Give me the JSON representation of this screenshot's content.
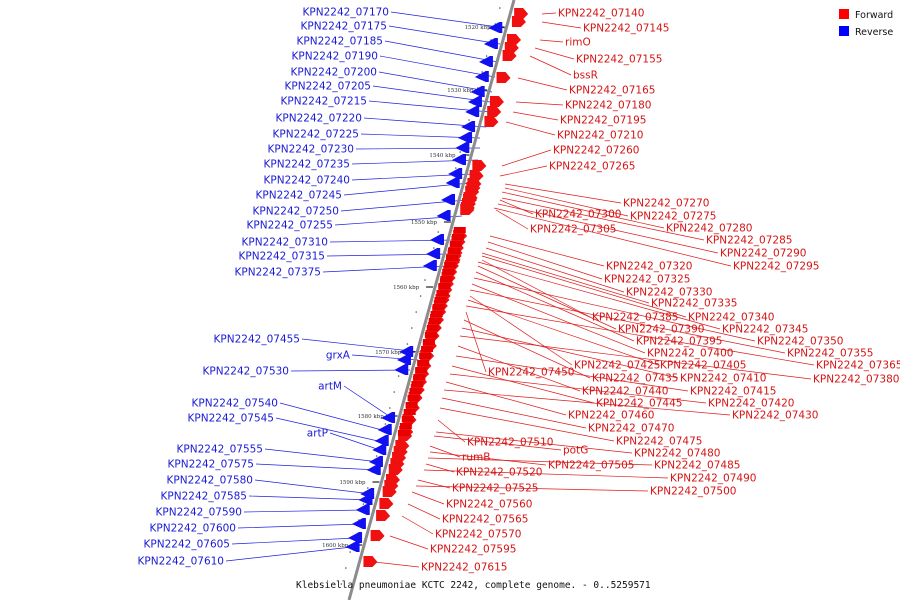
{
  "legend": {
    "forward_label": "Forward",
    "reverse_label": "Reverse",
    "forward_color": "#ff0000",
    "reverse_color": "#0000ff"
  },
  "caption": "Klebsiella pneumoniae KCTC 2242, complete genome. - 0..5259571",
  "ticks": [
    "1520 kbp",
    "1530 kbp",
    "1540 kbp",
    "1550 kbp",
    "1560 kbp",
    "1570 kbp",
    "1580 kbp",
    "1590 kbp",
    "1600 kbp"
  ],
  "reverse_labels": [
    "KPN2242_07170",
    "KPN2242_07175",
    "KPN2242_07185",
    "KPN2242_07190",
    "KPN2242_07200",
    "KPN2242_07205",
    "KPN2242_07215",
    "KPN2242_07220",
    "KPN2242_07225",
    "KPN2242_07230",
    "KPN2242_07235",
    "KPN2242_07240",
    "KPN2242_07245",
    "KPN2242_07250",
    "KPN2242_07255",
    "KPN2242_07310",
    "KPN2242_07315",
    "KPN2242_07375",
    "KPN2242_07455",
    "grxA",
    "KPN2242_07530",
    "artM",
    "KPN2242_07540",
    "KPN2242_07545",
    "artP",
    "KPN2242_07555",
    "KPN2242_07575",
    "KPN2242_07580",
    "KPN2242_07585",
    "KPN2242_07590",
    "KPN2242_07600",
    "KPN2242_07605",
    "KPN2242_07610"
  ],
  "forward_labels": [
    "KPN2242_07140",
    "KPN2242_07145",
    "rimO",
    "KPN2242_07155",
    "bssR",
    "KPN2242_07165",
    "KPN2242_07180",
    "KPN2242_07195",
    "KPN2242_07210",
    "KPN2242_07260",
    "KPN2242_07265",
    "KPN2242_07270",
    "KPN2242_07275",
    "KPN2242_07300",
    "KPN2242_07280",
    "KPN2242_07305",
    "KPN2242_07285",
    "KPN2242_07290",
    "KPN2242_07295",
    "KPN2242_07320",
    "KPN2242_07325",
    "KPN2242_07330",
    "KPN2242_07335",
    "KPN2242_07385",
    "KPN2242_07340",
    "KPN2242_07390",
    "KPN2242_07345",
    "KPN2242_07395",
    "KPN2242_07350",
    "KPN2242_07400",
    "KPN2242_07355",
    "KPN2242_07425",
    "KPN2242_07405",
    "KPN2242_07365",
    "KPN2242_07450",
    "KPN2242_07435",
    "KPN2242_07410",
    "KPN2242_07380",
    "KPN2242_07440",
    "KPN2242_07415",
    "KPN2242_07445",
    "KPN2242_07420",
    "KPN2242_07460",
    "KPN2242_07430",
    "KPN2242_07470",
    "KPN2242_07475",
    "KPN2242_07510",
    "potG",
    "KPN2242_07480",
    "rumB",
    "KPN2242_07505",
    "KPN2242_07485",
    "KPN2242_07520",
    "KPN2242_07490",
    "KPN2242_07525",
    "KPN2242_07500",
    "KPN2242_07560",
    "KPN2242_07565",
    "KPN2242_07570",
    "KPN2242_07595",
    "KPN2242_07615"
  ]
}
